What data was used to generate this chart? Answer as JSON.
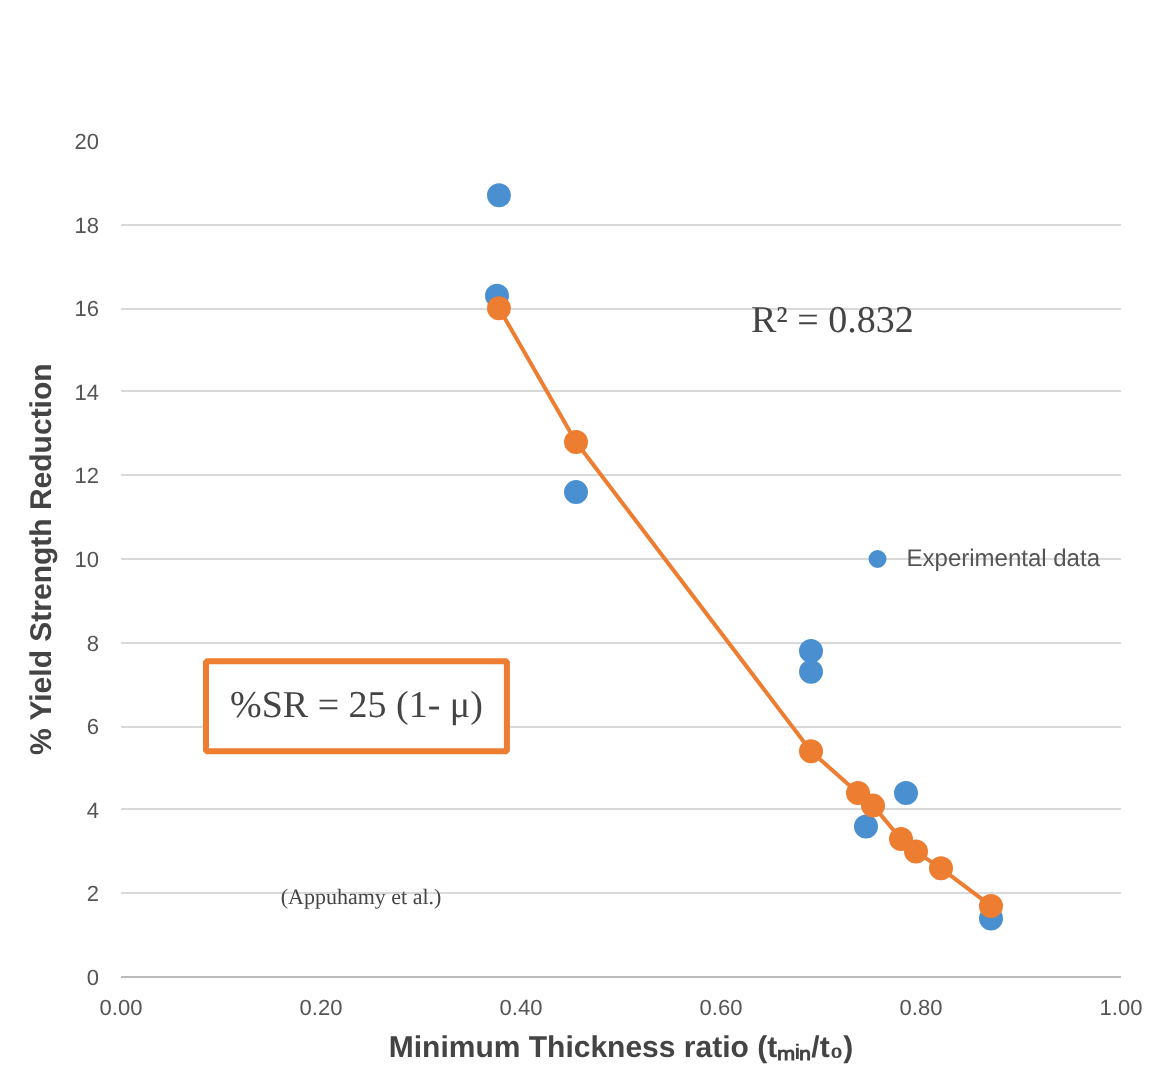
{
  "chart_data": {
    "type": "scatter",
    "xlabel": "Minimum Thickness ratio (tₘᵢₙ/t₀)",
    "ylabel": "% Yield Strength Reduction",
    "xlim": [
      0,
      1
    ],
    "ylim": [
      0,
      20
    ],
    "xticks": [
      {
        "value": 0,
        "label": "0.00"
      },
      {
        "value": 0.2,
        "label": "0.20"
      },
      {
        "value": 0.4,
        "label": "0.40"
      },
      {
        "value": 0.6,
        "label": "0.60"
      },
      {
        "value": 0.8,
        "label": "0.80"
      },
      {
        "value": 1,
        "label": "1.00"
      }
    ],
    "yticks": [
      0,
      2,
      4,
      6,
      8,
      10,
      12,
      14,
      16,
      18,
      20
    ],
    "grid": "y",
    "legend": "right",
    "marker": "circle",
    "series": [
      {
        "name": "Experimental data",
        "color": "#4a90d0",
        "x": [
          0.378,
          0.376,
          0.455,
          0.69,
          0.69,
          0.745,
          0.785,
          0.87
        ],
        "values": [
          18.7,
          16.3,
          11.6,
          7.8,
          7.3,
          3.6,
          4.4,
          1.4
        ]
      },
      {
        "type": "line",
        "color": "#ed7d31",
        "x": [
          0.378,
          0.455,
          0.69,
          0.737,
          0.752,
          0.78,
          0.795,
          0.82,
          0.87
        ],
        "values": [
          16.0,
          12.8,
          5.4,
          4.4,
          4.1,
          3.3,
          3.0,
          2.6,
          1.7
        ]
      }
    ],
    "annotations": [
      "R² = 0.832",
      "%SR = 25 (1- μ)",
      "(Appuhamy et al.)"
    ]
  }
}
